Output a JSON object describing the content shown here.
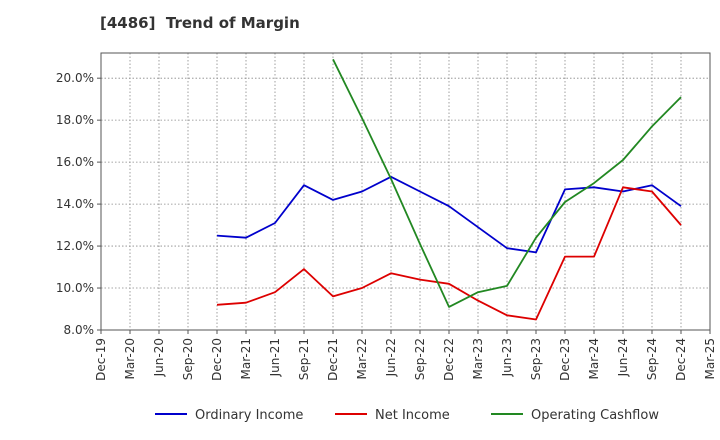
{
  "chart_data": {
    "type": "line",
    "title": "[4486]  Trend of Margin",
    "x_categories": [
      "Dec-19",
      "Mar-20",
      "Jun-20",
      "Sep-20",
      "Dec-20",
      "Mar-21",
      "Jun-21",
      "Sep-21",
      "Dec-21",
      "Mar-22",
      "Jun-22",
      "Sep-22",
      "Dec-22",
      "Mar-23",
      "Jun-23",
      "Sep-23",
      "Dec-23",
      "Mar-24",
      "Jun-24",
      "Sep-24",
      "Dec-24",
      "Mar-25"
    ],
    "ylim": [
      8.0,
      21.2
    ],
    "y_ticks": [
      "8.0%",
      "10.0%",
      "12.0%",
      "14.0%",
      "16.0%",
      "18.0%",
      "20.0%"
    ],
    "y_tick_values": [
      8,
      10,
      12,
      14,
      16,
      18,
      20
    ],
    "grid": true,
    "legend_position": "bottom",
    "series": [
      {
        "name": "Ordinary Income",
        "color": "#0000cc",
        "values": [
          null,
          null,
          null,
          null,
          12.5,
          12.4,
          13.1,
          14.9,
          14.2,
          14.6,
          15.3,
          14.6,
          13.9,
          12.9,
          11.9,
          11.7,
          14.7,
          14.8,
          14.6,
          14.9,
          13.9,
          null
        ]
      },
      {
        "name": "Net Income",
        "color": "#dd0000",
        "values": [
          null,
          null,
          null,
          null,
          9.2,
          9.3,
          9.8,
          10.9,
          9.6,
          10.0,
          10.7,
          10.4,
          10.2,
          9.4,
          8.7,
          8.5,
          11.5,
          11.5,
          14.8,
          14.6,
          13.0,
          null
        ]
      },
      {
        "name": "Operating Cashflow",
        "color": "#228822",
        "values": [
          null,
          null,
          null,
          null,
          null,
          null,
          null,
          null,
          20.9,
          18.1,
          15.2,
          12.1,
          9.1,
          9.8,
          10.1,
          12.4,
          14.1,
          15.0,
          16.1,
          17.7,
          19.1,
          null
        ]
      }
    ]
  }
}
